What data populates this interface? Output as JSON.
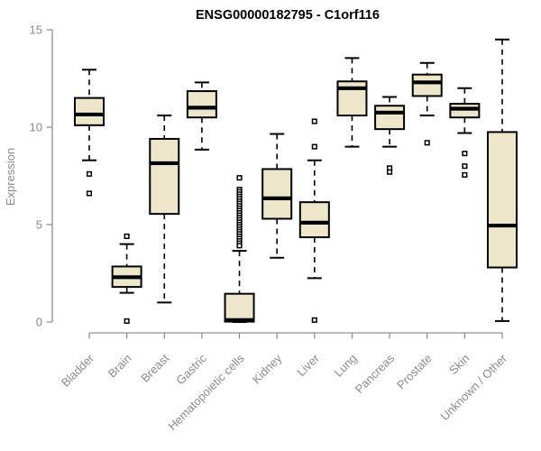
{
  "chart_data": {
    "type": "boxplot",
    "title": "ENSG00000182795 - C1orf116",
    "xlabel": "",
    "ylabel": "Expression",
    "ylim": [
      0,
      15
    ],
    "yticks": [
      0,
      5,
      10,
      15
    ],
    "grid": false,
    "legend": false,
    "categories": [
      "Bladder",
      "Brain",
      "Breast",
      "Gastric",
      "Hematopoietic cells",
      "Kidney",
      "Liver",
      "Lung",
      "Pancreas",
      "Prostate",
      "Skin",
      "Unknown / Other"
    ],
    "boxes": [
      {
        "label": "Bladder",
        "whislo": 8.3,
        "q1": 10.1,
        "med": 10.65,
        "q3": 11.5,
        "whishi": 12.95,
        "outliers": [
          7.6,
          6.6
        ]
      },
      {
        "label": "Brain",
        "whislo": 1.5,
        "q1": 1.8,
        "med": 2.3,
        "q3": 2.85,
        "whishi": 4.0,
        "outliers": [
          4.4,
          0.05
        ]
      },
      {
        "label": "Breast",
        "whislo": 1.0,
        "q1": 5.55,
        "med": 8.15,
        "q3": 9.4,
        "whishi": 10.6,
        "outliers": []
      },
      {
        "label": "Gastric",
        "whislo": 8.85,
        "q1": 10.5,
        "med": 11.0,
        "q3": 11.85,
        "whishi": 12.3,
        "outliers": []
      },
      {
        "label": "Hematopoietic cells",
        "whislo": 0.0,
        "q1": 0.02,
        "med": 0.1,
        "q3": 1.45,
        "whishi": 3.65,
        "outliers": [
          7.4,
          6.8,
          6.68,
          6.56,
          6.44,
          6.32,
          6.2,
          6.08,
          5.96,
          5.84,
          5.72,
          5.6,
          5.48,
          5.36,
          5.24,
          5.12,
          5.0,
          4.88,
          4.76,
          4.64,
          4.52,
          4.4,
          4.28,
          4.16,
          4.04,
          3.92
        ]
      },
      {
        "label": "Kidney",
        "whislo": 3.3,
        "q1": 5.3,
        "med": 6.35,
        "q3": 7.85,
        "whishi": 9.65,
        "outliers": []
      },
      {
        "label": "Liver",
        "whislo": 2.25,
        "q1": 4.35,
        "med": 5.1,
        "q3": 6.15,
        "whishi": 8.3,
        "outliers": [
          10.3,
          9.0,
          0.1
        ]
      },
      {
        "label": "Lung",
        "whislo": 9.0,
        "q1": 10.6,
        "med": 12.0,
        "q3": 12.35,
        "whishi": 13.55,
        "outliers": []
      },
      {
        "label": "Pancreas",
        "whislo": 9.0,
        "q1": 9.9,
        "med": 10.75,
        "q3": 11.1,
        "whishi": 11.55,
        "outliers": [
          7.9,
          7.7
        ]
      },
      {
        "label": "Prostate",
        "whislo": 10.6,
        "q1": 11.6,
        "med": 12.3,
        "q3": 12.7,
        "whishi": 13.3,
        "outliers": [
          9.2
        ]
      },
      {
        "label": "Skin",
        "whislo": 9.7,
        "q1": 10.5,
        "med": 10.95,
        "q3": 11.2,
        "whishi": 12.0,
        "outliers": [
          8.65,
          8.0,
          7.55
        ]
      },
      {
        "label": "Unknown / Other",
        "whislo": 0.05,
        "q1": 2.8,
        "med": 4.95,
        "q3": 9.75,
        "whishi": 14.5,
        "outliers": []
      }
    ],
    "colors": {
      "box_fill": "#EDE6CB",
      "box_border": "#000000",
      "median": "#000000",
      "whisker": "#000000",
      "outlier": "#000000",
      "axis": "#909090",
      "tick_label": "#8A8A8A",
      "title": "#000000",
      "background": "#FFFFFF"
    }
  }
}
